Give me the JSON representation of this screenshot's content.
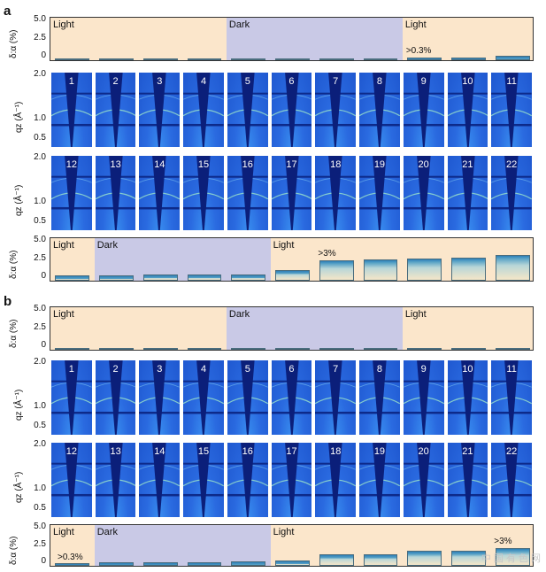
{
  "figure": {
    "panels": [
      {
        "letter": "a",
        "top_bar": {
          "ylabel": "δ:α (%)",
          "yticks": [
            "5.0",
            "2.5",
            "0"
          ],
          "ymax": 5.0,
          "regions": [
            {
              "label": "Light",
              "span": [
                1,
                4
              ],
              "color": "#fbe6cb"
            },
            {
              "label": "Dark",
              "span": [
                5,
                8
              ],
              "color": "#c9c9e6"
            },
            {
              "label": "Light",
              "span": [
                9,
                11
              ],
              "color": "#fbe6cb"
            }
          ],
          "values": [
            0.15,
            0.15,
            0.2,
            0.15,
            0.2,
            0.2,
            0.2,
            0.25,
            0.4,
            0.45,
            0.7
          ],
          "annotation": {
            "text": ">0.3%",
            "at_frame": 9
          }
        },
        "gixd_rows": [
          {
            "ylabel": "qz (Å⁻¹)",
            "yticks": [
              "2.0",
              "1.0",
              "0.5"
            ],
            "frames": [
              "1",
              "2",
              "3",
              "4",
              "5",
              "6",
              "7",
              "8",
              "9",
              "10",
              "11"
            ]
          },
          {
            "ylabel": "qz (Å⁻¹)",
            "yticks": [
              "2.0",
              "1.0",
              "0.5"
            ],
            "frames": [
              "12",
              "13",
              "14",
              "15",
              "16",
              "17",
              "18",
              "19",
              "20",
              "21",
              "22"
            ]
          }
        ],
        "bottom_bar": {
          "ylabel": "δ:α (%)",
          "yticks": [
            "5.0",
            "2.5",
            "0"
          ],
          "ymax": 5.0,
          "regions": [
            {
              "label": "Light",
              "span": [
                12,
                12
              ],
              "color": "#fbe6cb"
            },
            {
              "label": "Dark",
              "span": [
                13,
                16
              ],
              "color": "#c9c9e6"
            },
            {
              "label": "Light",
              "span": [
                17,
                22
              ],
              "color": "#fbe6cb"
            }
          ],
          "values": [
            0.9,
            0.95,
            1.05,
            1.05,
            1.1,
            1.7,
            3.4,
            3.6,
            3.7,
            3.8,
            4.2
          ],
          "annotation": {
            "text": ">3%",
            "at_frame": 18
          }
        }
      },
      {
        "letter": "b",
        "top_bar": {
          "ylabel": "δ:α (%)",
          "yticks": [
            "5.0",
            "2.5",
            "0"
          ],
          "ymax": 5.0,
          "regions": [
            {
              "label": "Light",
              "span": [
                1,
                4
              ],
              "color": "#fbe6cb"
            },
            {
              "label": "Dark",
              "span": [
                5,
                8
              ],
              "color": "#c9c9e6"
            },
            {
              "label": "Light",
              "span": [
                9,
                11
              ],
              "color": "#fbe6cb"
            }
          ],
          "values": [
            0.2,
            0.25,
            0.15,
            0.1,
            0.1,
            0.1,
            0.12,
            0.2,
            0.12,
            0.12,
            0.15
          ],
          "annotation": null
        },
        "gixd_rows": [
          {
            "ylabel": "qz (Å⁻¹)",
            "yticks": [
              "2.0",
              "1.0",
              "0.5"
            ],
            "frames": [
              "1",
              "2",
              "3",
              "4",
              "5",
              "6",
              "7",
              "8",
              "9",
              "10",
              "11"
            ]
          },
          {
            "ylabel": "qz (Å⁻¹)",
            "yticks": [
              "2.0",
              "1.0",
              "0.5"
            ],
            "frames": [
              "12",
              "13",
              "14",
              "15",
              "16",
              "17",
              "18",
              "19",
              "20",
              "21",
              "22"
            ]
          }
        ],
        "bottom_bar": {
          "ylabel": "δ:α (%)",
          "yticks": [
            "5.0",
            "2.5",
            "0"
          ],
          "ymax": 5.0,
          "regions": [
            {
              "label": "Light",
              "span": [
                12,
                12
              ],
              "color": "#fbe6cb"
            },
            {
              "label": "Dark",
              "span": [
                13,
                16
              ],
              "color": "#c9c9e6"
            },
            {
              "label": "Light",
              "span": [
                17,
                22
              ],
              "color": "#fbe6cb"
            }
          ],
          "values": [
            0.45,
            0.65,
            0.7,
            0.7,
            0.8,
            1.0,
            2.0,
            2.0,
            2.6,
            2.7,
            3.1
          ],
          "annotation_left": {
            "text": ">0.3%"
          },
          "annotation": {
            "text": ">3%",
            "at_frame": 22
          }
        }
      }
    ],
    "watermark": "中 国 有 色 网"
  }
}
